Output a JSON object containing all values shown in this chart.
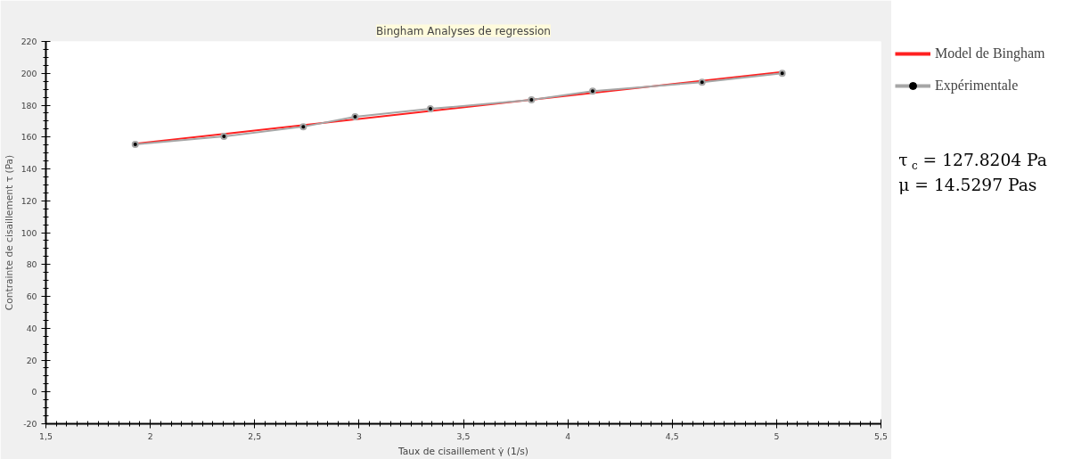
{
  "chart_data": {
    "type": "line",
    "title": "Bingham Analyses de regression",
    "xlabel": "Taux de cisaillement γ̇ (1/s)",
    "ylabel": "Contrainte de cisaillement τ (Pa)",
    "xlim": [
      1.5,
      5.5
    ],
    "xticks": [
      {
        "value": 1.5,
        "label": "1,5"
      },
      2,
      {
        "value": 2.5,
        "label": "2,5"
      },
      3,
      {
        "value": 3.5,
        "label": "3,5"
      },
      4,
      {
        "value": 4.5,
        "label": "4,5"
      },
      5,
      {
        "value": 5.5,
        "label": "5,5"
      }
    ],
    "ylim": [
      -20,
      220
    ],
    "yticks": [
      -20,
      0,
      20,
      40,
      60,
      80,
      100,
      120,
      140,
      160,
      180,
      200,
      220
    ],
    "series": [
      {
        "name": "Model de Bingham",
        "color": "#ff2020",
        "x": [
          1.928,
          5.027
        ],
        "values": [
          155.8,
          200.9
        ],
        "marker": "none"
      },
      {
        "name": "Expérimentale",
        "color": "#a6a6a6",
        "x": [
          1.928,
          2.353,
          2.733,
          2.981,
          3.342,
          3.826,
          4.119,
          4.643,
          5.027
        ],
        "values": [
          155.4,
          160.4,
          166.5,
          172.7,
          177.7,
          183.3,
          188.8,
          194.4,
          200.0
        ],
        "marker": "circle"
      }
    ],
    "legend": "top right",
    "grid": false,
    "annotations": [
      "τ$_{c}$ = 127.8204 Pa",
      "μ = 14.5297 Pas"
    ]
  }
}
